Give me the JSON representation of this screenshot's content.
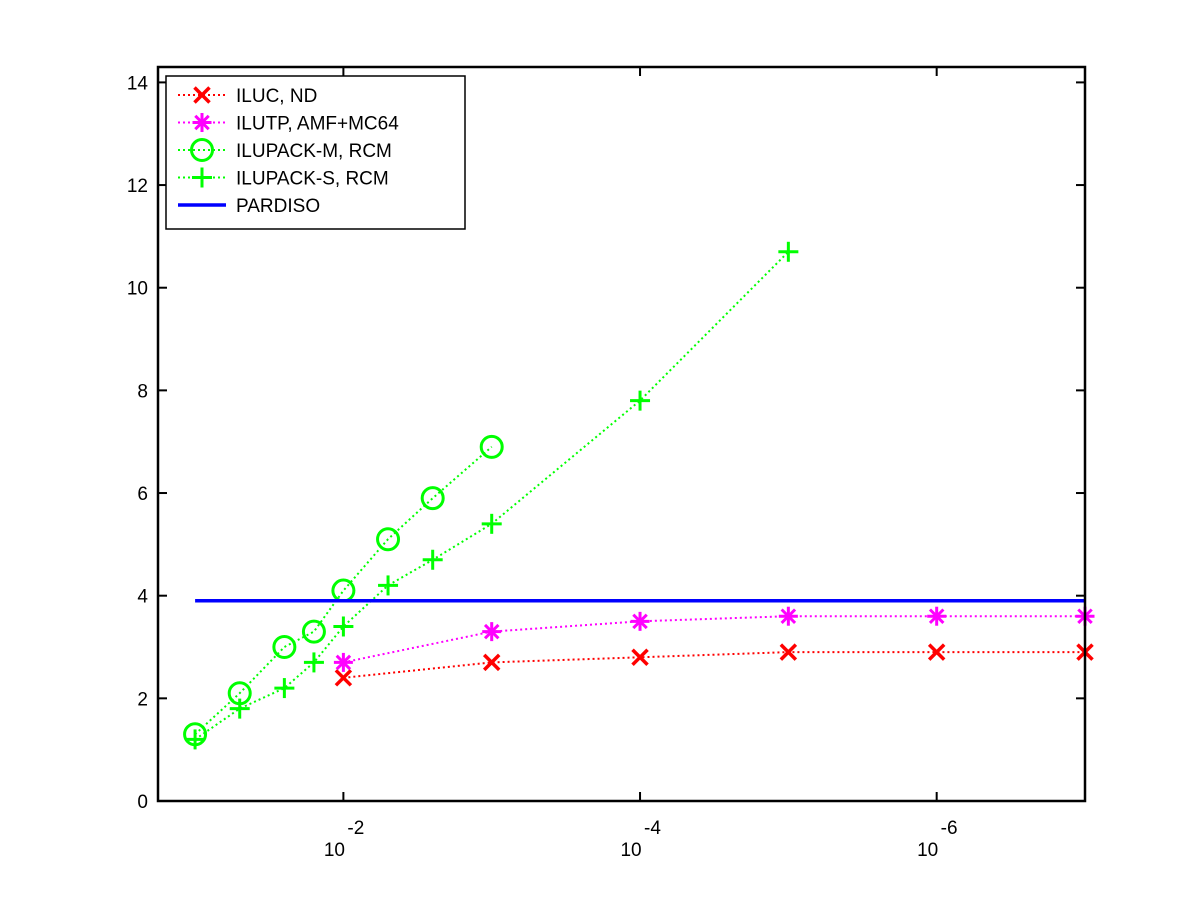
{
  "chart_data": {
    "type": "line",
    "title": "",
    "xlabel": "",
    "ylabel": "",
    "x_scale": "log",
    "x_direction": "decreasing",
    "xlim": [
      0.1778,
      1e-07
    ],
    "ylim": [
      0,
      14.3
    ],
    "y_ticks": [
      0,
      2,
      4,
      6,
      8,
      10,
      12,
      14
    ],
    "x_ticks": [
      {
        "value": 0.01,
        "base": "10",
        "exponent": "-2"
      },
      {
        "value": 0.0001,
        "base": "10",
        "exponent": "-4"
      },
      {
        "value": 1e-06,
        "base": "10",
        "exponent": "-6"
      }
    ],
    "grid": false,
    "legend_position": "top-left",
    "series": [
      {
        "name": "ILUC,  ND",
        "color": "#ff0000",
        "marker": "x",
        "line_style": "dotted",
        "x": [
          0.01,
          0.001,
          0.0001,
          1e-05,
          1e-06,
          1e-07
        ],
        "y": [
          2.4,
          2.7,
          2.8,
          2.9,
          2.9,
          2.9
        ]
      },
      {
        "name": "ILUTP, AMF+MC64",
        "color": "#ff00ff",
        "marker": "asterisk",
        "line_style": "dotted",
        "x": [
          0.01,
          0.001,
          0.0001,
          1e-05,
          1e-06,
          1e-07
        ],
        "y": [
          2.7,
          3.3,
          3.5,
          3.6,
          3.6,
          3.6
        ]
      },
      {
        "name": "ILUPACK-M, RCM",
        "color": "#00ff00",
        "marker": "circle",
        "line_style": "dotted",
        "x": [
          0.1,
          0.05,
          0.025,
          0.0158,
          0.01,
          0.005,
          0.0025,
          0.001
        ],
        "y": [
          1.3,
          2.1,
          3.0,
          3.3,
          4.1,
          5.1,
          5.9,
          6.9
        ]
      },
      {
        "name": "ILUPACK-S, RCM",
        "color": "#00ff00",
        "marker": "plus",
        "line_style": "dotted",
        "x": [
          0.1,
          0.05,
          0.025,
          0.0158,
          0.01,
          0.005,
          0.0025,
          0.001,
          0.0001,
          1e-05
        ],
        "y": [
          1.2,
          1.8,
          2.2,
          2.7,
          3.4,
          4.2,
          4.7,
          5.4,
          7.8,
          10.7
        ]
      },
      {
        "name": "PARDISO",
        "color": "#0000ff",
        "marker": "none",
        "line_style": "solid",
        "x": [
          0.1,
          1e-07
        ],
        "y": [
          3.9,
          3.9
        ]
      }
    ]
  }
}
